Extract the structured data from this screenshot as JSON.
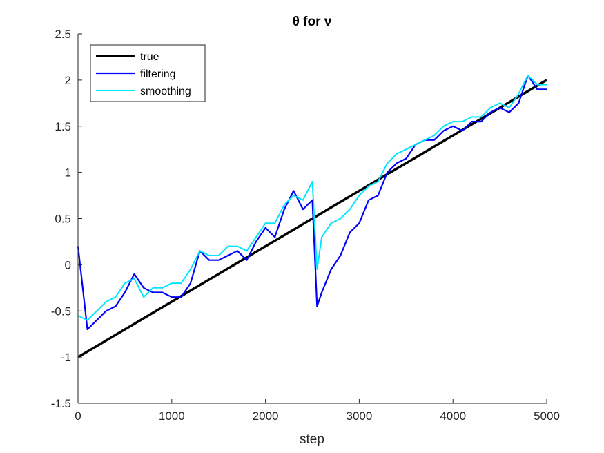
{
  "chart_data": {
    "type": "line",
    "title": "θ for ν",
    "xlabel": "step",
    "ylabel": "",
    "xlim": [
      0,
      5000
    ],
    "ylim": [
      -1.5,
      2.5
    ],
    "x_ticks": [
      "0",
      "1000",
      "2000",
      "3000",
      "4000",
      "5000"
    ],
    "y_ticks": [
      "-1.5",
      "-1",
      "-0.5",
      "0",
      "0.5",
      "1",
      "1.5",
      "2",
      "2.5"
    ],
    "grid": false,
    "legend_position": "top-left",
    "x": [
      0,
      100,
      200,
      300,
      400,
      500,
      600,
      700,
      800,
      900,
      1000,
      1100,
      1200,
      1300,
      1400,
      1500,
      1600,
      1700,
      1800,
      1900,
      2000,
      2100,
      2200,
      2300,
      2400,
      2500,
      2550,
      2600,
      2700,
      2800,
      2900,
      3000,
      3100,
      3200,
      3300,
      3400,
      3500,
      3600,
      3700,
      3800,
      3900,
      4000,
      4100,
      4200,
      4300,
      4400,
      4500,
      4600,
      4700,
      4800,
      4900,
      5000
    ],
    "series": [
      {
        "name": "true",
        "color": "#000000",
        "values": [
          -1.0,
          -0.94,
          -0.88,
          -0.82,
          -0.76,
          -0.7,
          -0.64,
          -0.58,
          -0.52,
          -0.46,
          -0.4,
          -0.34,
          -0.28,
          -0.22,
          -0.16,
          -0.1,
          -0.04,
          0.02,
          0.08,
          0.14,
          0.2,
          0.26,
          0.32,
          0.38,
          0.44,
          0.5,
          0.53,
          0.56,
          0.62,
          0.68,
          0.74,
          0.8,
          0.86,
          0.92,
          0.98,
          1.04,
          1.1,
          1.16,
          1.22,
          1.28,
          1.34,
          1.4,
          1.46,
          1.52,
          1.58,
          1.64,
          1.7,
          1.76,
          1.82,
          1.88,
          1.94,
          2.0
        ]
      },
      {
        "name": "filtering",
        "color": "#0000ff",
        "values": [
          0.2,
          -0.7,
          -0.6,
          -0.5,
          -0.45,
          -0.3,
          -0.1,
          -0.25,
          -0.3,
          -0.3,
          -0.35,
          -0.35,
          -0.2,
          0.15,
          0.05,
          0.05,
          0.1,
          0.15,
          0.05,
          0.25,
          0.4,
          0.3,
          0.6,
          0.8,
          0.6,
          0.7,
          -0.45,
          -0.3,
          -0.05,
          0.1,
          0.35,
          0.45,
          0.7,
          0.75,
          1.0,
          1.1,
          1.15,
          1.3,
          1.35,
          1.35,
          1.45,
          1.5,
          1.45,
          1.55,
          1.55,
          1.65,
          1.7,
          1.65,
          1.75,
          2.05,
          1.9,
          1.9
        ]
      },
      {
        "name": "smoothing",
        "color": "#00e5ff",
        "values": [
          -0.55,
          -0.6,
          -0.5,
          -0.4,
          -0.35,
          -0.2,
          -0.15,
          -0.35,
          -0.25,
          -0.25,
          -0.2,
          -0.2,
          -0.05,
          0.15,
          0.1,
          0.1,
          0.2,
          0.2,
          0.15,
          0.3,
          0.45,
          0.45,
          0.65,
          0.75,
          0.7,
          0.9,
          -0.05,
          0.3,
          0.45,
          0.5,
          0.6,
          0.75,
          0.85,
          0.9,
          1.1,
          1.2,
          1.25,
          1.3,
          1.35,
          1.4,
          1.5,
          1.55,
          1.55,
          1.6,
          1.6,
          1.7,
          1.75,
          1.7,
          1.85,
          2.05,
          1.95,
          1.95
        ]
      }
    ]
  }
}
